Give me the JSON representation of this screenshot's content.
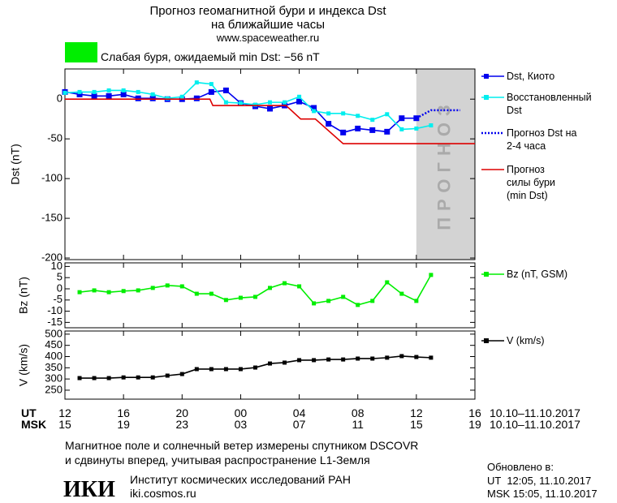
{
  "header": {
    "title": [
      "Прогноз геомагнитной бури и индекса Dst",
      "на ближайшие часы"
    ],
    "url": "www.spaceweather.ru",
    "status": "Слабая буря, ожидаемый min Dst: −56 nT",
    "status_color": "#00ee00"
  },
  "chart_data": [
    {
      "type": "line",
      "ylabel": "Dst (nT)",
      "xlim": [
        0,
        28
      ],
      "xticks": [
        0,
        4,
        8,
        12,
        16,
        20,
        24,
        28
      ],
      "ylim": [
        -202,
        38
      ],
      "yticks": [
        0,
        -50,
        -100,
        -150,
        -200
      ],
      "forecast_band": {
        "x": [
          24,
          28
        ],
        "label": "ПРОГНОЗ",
        "color": "#d3d3d3"
      },
      "series": [
        {
          "name": "Dst, Киото",
          "color": "#0000ee",
          "marker": "square",
          "dash": false,
          "x": [
            0,
            1,
            2,
            3,
            4,
            5,
            6,
            7,
            8,
            9,
            10,
            11,
            12,
            13,
            14,
            15,
            16,
            17,
            18,
            19,
            20,
            21,
            22,
            23,
            24
          ],
          "values": [
            9,
            6,
            4,
            4,
            6,
            1,
            1,
            0,
            0,
            1,
            9,
            11,
            -5,
            -9,
            -12,
            -8,
            -3,
            -11,
            -31,
            -42,
            -37,
            -39,
            -41,
            -24,
            -24
          ]
        },
        {
          "name": "Восстановленный Dst",
          "color": "#00eeee",
          "marker": "square",
          "dash": false,
          "x": [
            0,
            1,
            2,
            3,
            4,
            5,
            6,
            7,
            8,
            9,
            10,
            11,
            12,
            13,
            14,
            15,
            16,
            17,
            18,
            19,
            20,
            21,
            22,
            23,
            24,
            25
          ],
          "values": [
            8,
            9,
            9,
            11,
            11,
            9,
            6,
            1,
            3,
            21,
            19,
            -4,
            -5,
            -7,
            -4,
            -4,
            3,
            -15,
            -18,
            -18,
            -21,
            -26,
            -19,
            -38,
            -37,
            -33
          ]
        },
        {
          "name": "Прогноз Dst на 2-4 часа",
          "color": "#0000ee",
          "marker": "none",
          "dash": true,
          "x": [
            24,
            25,
            27
          ],
          "values": [
            -24,
            -14,
            -14
          ]
        },
        {
          "name": "Прогноз силы бури (min Dst)",
          "color": "#dd0000",
          "marker": "none",
          "dash": false,
          "x": [
            0,
            9.9,
            10.1,
            15.1,
            16.1,
            17.1,
            19,
            28
          ],
          "values": [
            0,
            0,
            -8,
            -8,
            -25,
            -25,
            -56,
            -56
          ]
        }
      ]
    },
    {
      "type": "line",
      "ylabel": "Bz (nT)",
      "xlim": [
        0,
        28
      ],
      "xticks": [
        0,
        4,
        8,
        12,
        16,
        20,
        24,
        28
      ],
      "ylim": [
        -17.4,
        11.6
      ],
      "yticks": [
        10,
        5,
        0,
        -5,
        -10,
        -15
      ],
      "series": [
        {
          "name": "Bz (nT, GSM)",
          "color": "#00ee00",
          "marker": "square",
          "dash": false,
          "x": [
            1,
            2,
            3,
            4,
            5,
            6,
            7,
            8,
            9,
            10,
            11,
            12,
            13,
            14,
            15,
            16,
            17,
            18,
            19,
            20,
            21,
            22,
            23,
            24,
            25
          ],
          "values": [
            -1.5,
            -0.7,
            -1.5,
            -1,
            -0.7,
            0.4,
            1.5,
            1.1,
            -2.2,
            -2.2,
            -5,
            -4,
            -3.6,
            0.4,
            2.5,
            1.1,
            -6.5,
            -5.4,
            -3.6,
            -7.2,
            -5.4,
            2.9,
            -2.2,
            -5.4,
            6.2
          ]
        }
      ]
    },
    {
      "type": "line",
      "ylabel": "V (km/s)",
      "xlim": [
        0,
        28
      ],
      "xticks": [
        {
          "value": 0,
          "label": "12"
        },
        {
          "value": 4,
          "label": "16"
        },
        {
          "value": 8,
          "label": "20"
        },
        {
          "value": 12,
          "label": "00"
        },
        {
          "value": 16,
          "label": "04"
        },
        {
          "value": 20,
          "label": "08"
        },
        {
          "value": 24,
          "label": "12"
        },
        {
          "value": 28,
          "label": "16"
        }
      ],
      "xticks_msk": [
        {
          "value": 0,
          "label": "15"
        },
        {
          "value": 4,
          "label": "19"
        },
        {
          "value": 8,
          "label": "23"
        },
        {
          "value": 12,
          "label": "03"
        },
        {
          "value": 16,
          "label": "07"
        },
        {
          "value": 20,
          "label": "11"
        },
        {
          "value": 24,
          "label": "15"
        },
        {
          "value": 28,
          "label": "19"
        }
      ],
      "xlabel": "UT",
      "xlabel_msk": "MSK",
      "date_range": "10.10–11.10.2017",
      "date_range_msk": "10.10–11.10.2017",
      "ylim": [
        210,
        514
      ],
      "yticks": [
        250,
        300,
        350,
        400,
        450,
        500
      ],
      "series": [
        {
          "name": "V (km/s)",
          "color": "#000000",
          "marker": "square",
          "dash": false,
          "x": [
            1,
            2,
            3,
            4,
            5,
            6,
            7,
            8,
            9,
            10,
            11,
            12,
            13,
            14,
            15,
            16,
            17,
            18,
            19,
            20,
            21,
            22,
            23,
            24,
            25
          ],
          "values": [
            304,
            304,
            304,
            307,
            307,
            307,
            315,
            322,
            344,
            344,
            344,
            344,
            351,
            369,
            373,
            384,
            384,
            387,
            387,
            391,
            391,
            395,
            402,
            398,
            395
          ]
        }
      ]
    }
  ],
  "footer": {
    "note": [
      "Магнитное поле и солнечный ветер измерены спутником DSCOVR",
      "и сдвинуты вперед, учитывая распространение L1-Земля"
    ],
    "logo": "ИКИ",
    "institute": "Институт космических исследований РАН",
    "site": "iki.cosmos.ru",
    "updated_label": "Обновлено в:",
    "updated": [
      "UT  12:05, 11.10.2017",
      "MSK 15:05, 11.10.2017"
    ]
  }
}
